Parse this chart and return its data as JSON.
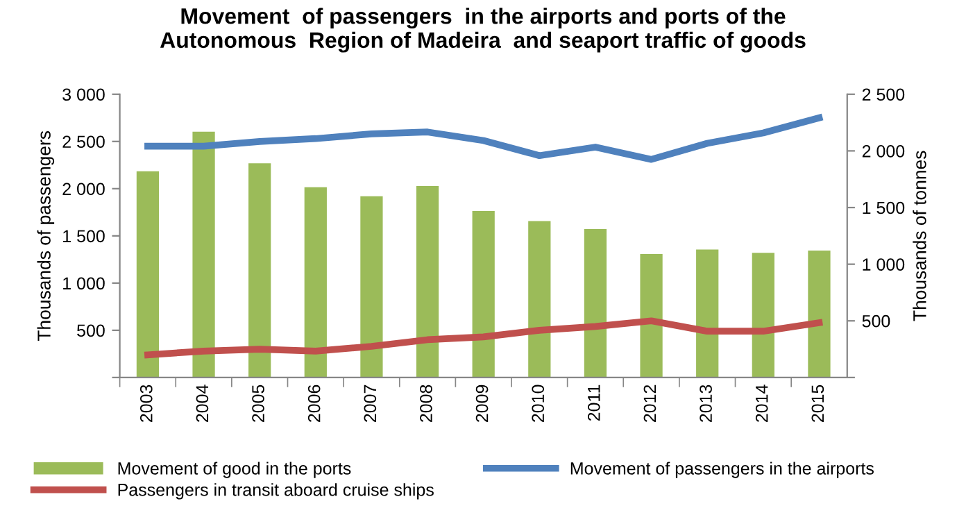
{
  "chart_data": {
    "type": "bar",
    "title": "Movement  of passengers  in the airports and ports of the\nAutonomous  Region of Madeira  and seaport traffic of goods",
    "categories": [
      "2003",
      "2004",
      "2005",
      "2006",
      "2007",
      "2008",
      "2009",
      "2010",
      "2011",
      "2012",
      "2013",
      "2014",
      "2015"
    ],
    "series": [
      {
        "name": "Movement of good in the ports",
        "axis": "y2",
        "color": "#9bbb59",
        "values": [
          1820,
          2170,
          1890,
          1680,
          1600,
          1690,
          1470,
          1380,
          1310,
          1090,
          1130,
          1100,
          1120
        ]
      },
      {
        "name": "Movement of passengers in the airports",
        "type": "line",
        "color": "#4f81bd",
        "values": [
          2450,
          2450,
          2500,
          2530,
          2580,
          2600,
          2510,
          2350,
          2440,
          2310,
          2480,
          2590,
          2750
        ]
      },
      {
        "name": "Passengers in transit aboard cruise ships",
        "type": "line",
        "color": "#c0504d",
        "values": [
          240,
          280,
          300,
          280,
          330,
          400,
          430,
          500,
          540,
          600,
          490,
          490,
          580
        ]
      }
    ],
    "ylabel": "Thousands of passengers",
    "y2label": "Thousands of tonnes",
    "ylim": [
      0,
      3000
    ],
    "yticks": [
      {
        "value": 0,
        "label": null
      },
      {
        "value": 500,
        "label": "500"
      },
      {
        "value": 1000,
        "label": "1 000"
      },
      {
        "value": 1500,
        "label": "1 500"
      },
      {
        "value": 2000,
        "label": "2 000"
      },
      {
        "value": 2500,
        "label": "2 500"
      },
      {
        "value": 3000,
        "label": "3 000"
      }
    ],
    "y2lim": [
      0,
      2500
    ],
    "y2ticks": [
      {
        "value": 0,
        "label": null
      },
      {
        "value": 500,
        "label": "500"
      },
      {
        "value": 1000,
        "label": "1 000"
      },
      {
        "value": 1500,
        "label": "1 500"
      },
      {
        "value": 2000,
        "label": "2 000"
      },
      {
        "value": 2500,
        "label": "2 500"
      }
    ],
    "legend": "bottom",
    "grid": false,
    "marker": "none",
    "line_style": "solid"
  }
}
